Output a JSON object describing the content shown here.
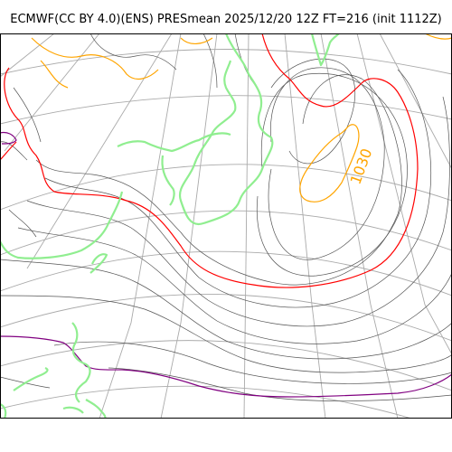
{
  "header": {
    "title": "ECMWF(CC BY 4.0)(ENS) PRESmean 2025/12/20 12Z FT=216 (init 1112Z)"
  },
  "map": {
    "contour_label": "1030",
    "colors": {
      "coastline": "#90ee90",
      "isobar": "#555555",
      "isobar_1020": "#ff0000",
      "isobar_1030": "#ffa500",
      "isobar_1012": "#800080",
      "graticule": "#aaaaaa",
      "frame": "#000000"
    }
  }
}
